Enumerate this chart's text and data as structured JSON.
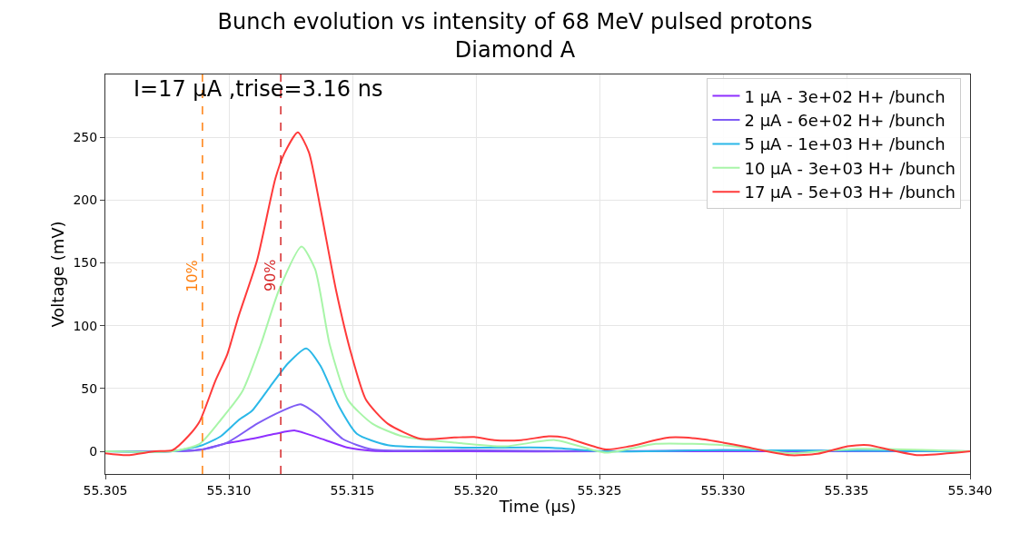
{
  "chart_data": {
    "type": "line",
    "title": "Bunch evolution vs intensity of 68 MeV pulsed protons",
    "subtitle": "Diamond A",
    "xlabel": "Time (µs)",
    "ylabel": "Voltage (mV)",
    "annotations": [
      "I=17 µA ,trise=3.16 ns",
      {
        "text": "10%",
        "x": 55.30893,
        "y": 140
      },
      {
        "text": "90%",
        "x": 55.3121,
        "y": 140
      }
    ],
    "xlim": [
      55.305,
      55.34
    ],
    "xticks": [
      55.305,
      {
        "value": 55.31,
        "label": "55.310"
      },
      55.315,
      {
        "value": 55.32,
        "label": "55.320"
      },
      55.325,
      {
        "value": 55.33,
        "label": "55.330"
      },
      55.335,
      {
        "value": 55.34,
        "label": "55.340"
      }
    ],
    "ylim": [
      -18,
      300
    ],
    "yticks": [
      0,
      50,
      100,
      150,
      200,
      250
    ],
    "grid": true,
    "legend": "top right",
    "line_style": "solid",
    "marker": "none",
    "ref_lines": [
      {
        "axis": "x",
        "value": 55.30893,
        "color": "#ff7f0e",
        "line_style": "dashed"
      },
      {
        "axis": "x",
        "value": 55.3121,
        "color": "#d62728",
        "line_style": "dashed"
      }
    ],
    "series": [
      {
        "name": "1 µA - 3e+02 H+ /bunch",
        "color": "#8f30ff",
        "x": [
          55.305,
          55.30772,
          55.30893,
          55.30993,
          55.31092,
          55.31188,
          55.31268,
          55.3136,
          55.31482,
          55.31581,
          55.31949,
          55.32526,
          55.33,
          55.34
        ],
        "values": [
          0,
          0,
          1.5,
          6.5,
          10,
          14,
          16.6,
          11,
          3,
          0.5,
          0,
          0,
          0,
          0
        ]
      },
      {
        "name": "2 µA - 6e+02 H+ /bunch",
        "color": "#7f5cf5",
        "x": [
          55.305,
          55.30772,
          55.30893,
          55.30993,
          55.31114,
          55.31213,
          55.3129,
          55.3136,
          55.3146,
          55.31581,
          55.31949,
          55.32526,
          55.33,
          55.34
        ],
        "values": [
          0,
          0,
          1.5,
          7,
          22,
          32,
          37.5,
          29,
          10,
          1.5,
          1,
          0,
          1,
          0
        ]
      },
      {
        "name": "5 µA - 1e+03 H+ /bunch",
        "color": "#2bb8e8",
        "x": [
          55.305,
          55.30772,
          55.30893,
          55.30967,
          55.3104,
          55.31092,
          55.31165,
          55.31239,
          55.31313,
          55.31371,
          55.31445,
          55.31518,
          55.31643,
          55.31949,
          55.32294,
          55.32526,
          55.33,
          55.34
        ],
        "values": [
          0,
          0,
          5,
          12,
          25,
          32,
          51,
          70,
          82,
          68,
          36,
          14,
          5,
          3,
          3,
          0,
          1,
          0
        ]
      },
      {
        "name": "10 µA - 3e+03 H+ /bunch",
        "color": "#a8f5a8",
        "x": [
          55.305,
          55.30772,
          55.30882,
          55.30967,
          55.31055,
          55.31129,
          55.31202,
          55.31294,
          55.31349,
          55.31408,
          55.31482,
          55.31581,
          55.31702,
          55.31912,
          55.32118,
          55.3232,
          55.32526,
          55.32728,
          55.33,
          55.33272,
          55.33544,
          55.34
        ],
        "values": [
          0,
          0,
          6,
          25,
          48,
          85,
          128,
          163,
          145,
          85,
          41,
          22,
          12,
          7,
          4,
          9,
          -1,
          6,
          5,
          -1.5,
          2,
          0
        ]
      },
      {
        "name": "17 µA - 5e+03 H+ /bunch",
        "color": "#ff3a3a",
        "x": [
          55.305,
          55.30588,
          55.30699,
          55.30772,
          55.30835,
          55.30882,
          55.30945,
          55.30993,
          55.3104,
          55.31114,
          55.31188,
          55.31224,
          55.31279,
          55.31324,
          55.31371,
          55.31434,
          55.31496,
          55.31555,
          55.31643,
          55.31776,
          55.31912,
          55.31993,
          55.32074,
          55.32184,
          55.32294,
          55.3236,
          55.32526,
          55.32621,
          55.32783,
          55.32904,
          55.33,
          55.33081,
          55.33272,
          55.33382,
          55.33504,
          55.33588,
          55.3368,
          55.3379,
          55.34
        ],
        "values": [
          -1.5,
          -3,
          0,
          1,
          12,
          24,
          56,
          77,
          108,
          152,
          217,
          237,
          254,
          238,
          193,
          128,
          77,
          41,
          22,
          10,
          11,
          11.5,
          9,
          9,
          12,
          11,
          1.5,
          4,
          11,
          10,
          7,
          4,
          -3,
          -2,
          4,
          5,
          1,
          -3,
          0
        ]
      }
    ]
  }
}
